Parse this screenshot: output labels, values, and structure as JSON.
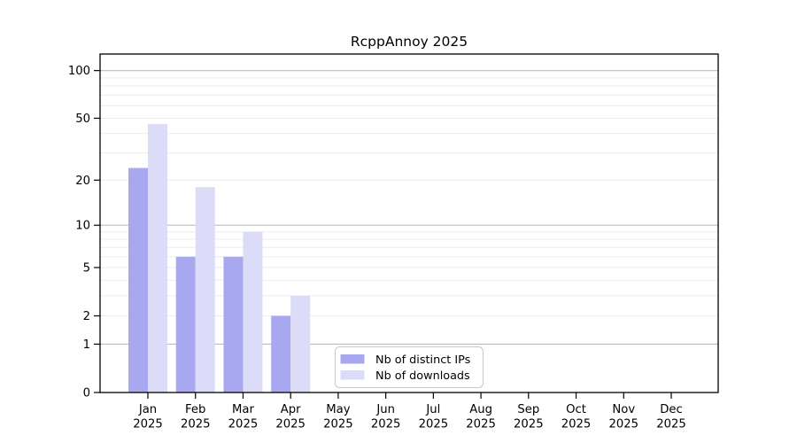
{
  "title": "RcppAnnoy 2025",
  "colors": {
    "distinct_ips": "#a8a8f0",
    "downloads": "#dcdcf8",
    "grid_minor": "#ececec",
    "grid_major": "#bbbbbb",
    "axis": "#000000",
    "legend_border": "#c8c8c8",
    "text": "#000000"
  },
  "legend": {
    "items": [
      {
        "label": "Nb of distinct IPs",
        "color_key": "distinct_ips"
      },
      {
        "label": "Nb of downloads",
        "color_key": "downloads"
      }
    ]
  },
  "chart_data": {
    "type": "bar",
    "title": "RcppAnnoy 2025",
    "categories": [
      "Jan",
      "Feb",
      "Mar",
      "Apr",
      "May",
      "Jun",
      "Jul",
      "Aug",
      "Sep",
      "Oct",
      "Nov",
      "Dec"
    ],
    "x_sublabel": "2025",
    "series": [
      {
        "name": "Nb of distinct IPs",
        "values": [
          24,
          6,
          6,
          2,
          0,
          0,
          0,
          0,
          0,
          0,
          0,
          0
        ],
        "color": "#a8a8f0"
      },
      {
        "name": "Nb of downloads",
        "values": [
          46,
          18,
          9,
          3,
          0,
          0,
          0,
          0,
          0,
          0,
          0,
          0
        ],
        "color": "#dcdcf8"
      }
    ],
    "y_scale": "log1p",
    "ylim": [
      0,
      127
    ],
    "y_ticks": [
      0,
      1,
      2,
      5,
      10,
      20,
      50,
      100
    ],
    "gridlines": {
      "minor": [
        2,
        3,
        4,
        5,
        6,
        7,
        8,
        9,
        20,
        30,
        40,
        50,
        60,
        70,
        80,
        90
      ],
      "major": [
        1,
        10,
        100
      ]
    },
    "grid": true,
    "legend_position": "inside-bottom-center",
    "xlabel": "",
    "ylabel": ""
  }
}
